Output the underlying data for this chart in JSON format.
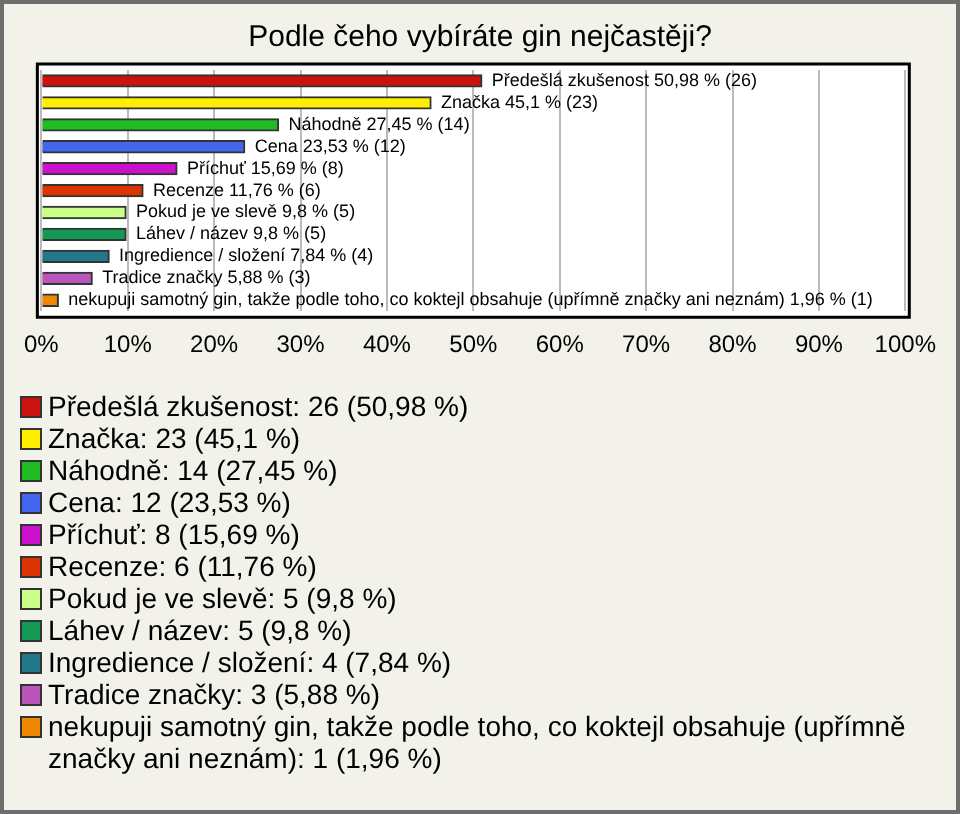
{
  "chart_data": {
    "type": "bar",
    "orientation": "horizontal",
    "title": "Podle čeho vybíráte gin nejčastěji?",
    "categories": [
      "Předešlá zkušenost",
      "Značka",
      "Náhodně",
      "Cena",
      "Příchuť",
      "Recenze",
      "Pokud je ve slevě",
      "Láhev / název",
      "Ingredience / složení",
      "Tradice značky",
      "nekupuji samotný gin, takže podle toho, co koktejl obsahuje (upřímně značky ani neznám)"
    ],
    "values": [
      50.98,
      45.1,
      27.45,
      23.53,
      15.69,
      11.76,
      9.8,
      9.8,
      7.84,
      5.88,
      1.96
    ],
    "value_labels": [
      "50,98 % (26)",
      "45,1 % (23)",
      "27,45 % (14)",
      "23,53 % (12)",
      "15,69 % (8)",
      "11,76 % (6)",
      "9,8 % (5)",
      "9,8 % (5)",
      "7,84 % (4)",
      "5,88 % (3)",
      "1,96 % (1)"
    ],
    "colors": [
      "#cc1111",
      "#ffee00",
      "#22bb22",
      "#4466ee",
      "#cc11cc",
      "#dd3300",
      "#ccff88",
      "#119955",
      "#227788",
      "#bb55bb",
      "#ee8800"
    ],
    "xlim": [
      0,
      100
    ],
    "xticks": [
      {
        "value": 0,
        "label": "0%"
      },
      {
        "value": 10,
        "label": "10%"
      },
      {
        "value": 20,
        "label": "20%"
      },
      {
        "value": 30,
        "label": "30%"
      },
      {
        "value": 40,
        "label": "40%"
      },
      {
        "value": 50,
        "label": "50%"
      },
      {
        "value": 60,
        "label": "60%"
      },
      {
        "value": 70,
        "label": "70%"
      },
      {
        "value": 80,
        "label": "80%"
      },
      {
        "value": 90,
        "label": "90%"
      },
      {
        "value": 100,
        "label": "100%"
      }
    ],
    "grid": "x",
    "annotations": [
      "Předešlá zkušenost: 26 (50,98 %)",
      "Značka: 23 (45,1 %)",
      "Náhodně: 14 (27,45 %)",
      "Cena: 12 (23,53 %)",
      "Příchuť: 8 (15,69 %)",
      "Recenze: 6 (11,76 %)",
      "Pokud je ve slevě: 5 (9,8 %)",
      "Láhev / název: 5 (9,8 %)",
      "Ingredience / složení: 4 (7,84 %)",
      "Tradice značky: 3 (5,88 %)",
      "nekupuji samotný gin, takže podle toho, co koktejl obsahuje (upřímně značky ani neznám): 1 (1,96 %)"
    ]
  }
}
